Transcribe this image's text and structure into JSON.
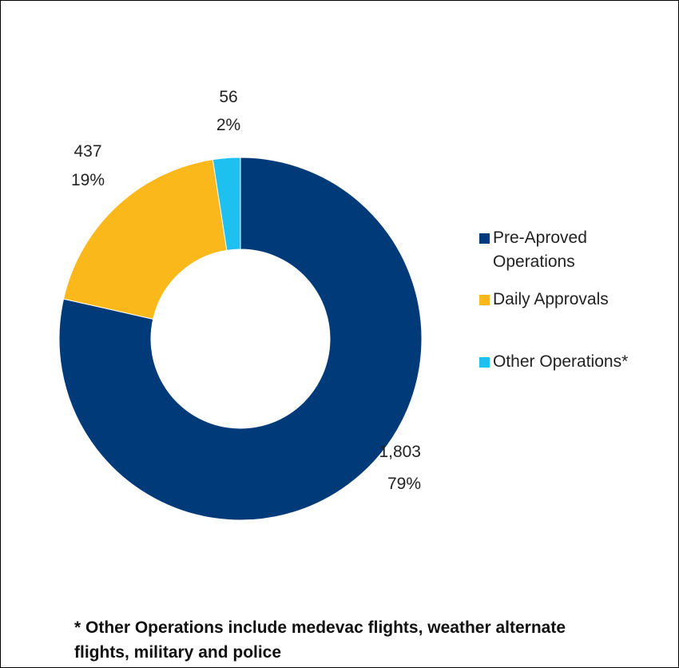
{
  "chart_data": {
    "type": "pie",
    "variant": "donut",
    "title": "",
    "slices": [
      {
        "label": "Pre-Aproved Operations",
        "value": 1803,
        "value_label": "1,803",
        "percent_label": "79%",
        "color": "#003a78"
      },
      {
        "label": "Daily Approvals",
        "value": 437,
        "value_label": "437",
        "percent_label": "19%",
        "color": "#fbb81b"
      },
      {
        "label": "Other Operations*",
        "value": 56,
        "value_label": "56",
        "percent_label": "2%",
        "color": "#1ec0ef"
      }
    ],
    "legend_position": "right",
    "footnote": "* Other Operations include medevac flights, weather alternate flights, military and police"
  }
}
